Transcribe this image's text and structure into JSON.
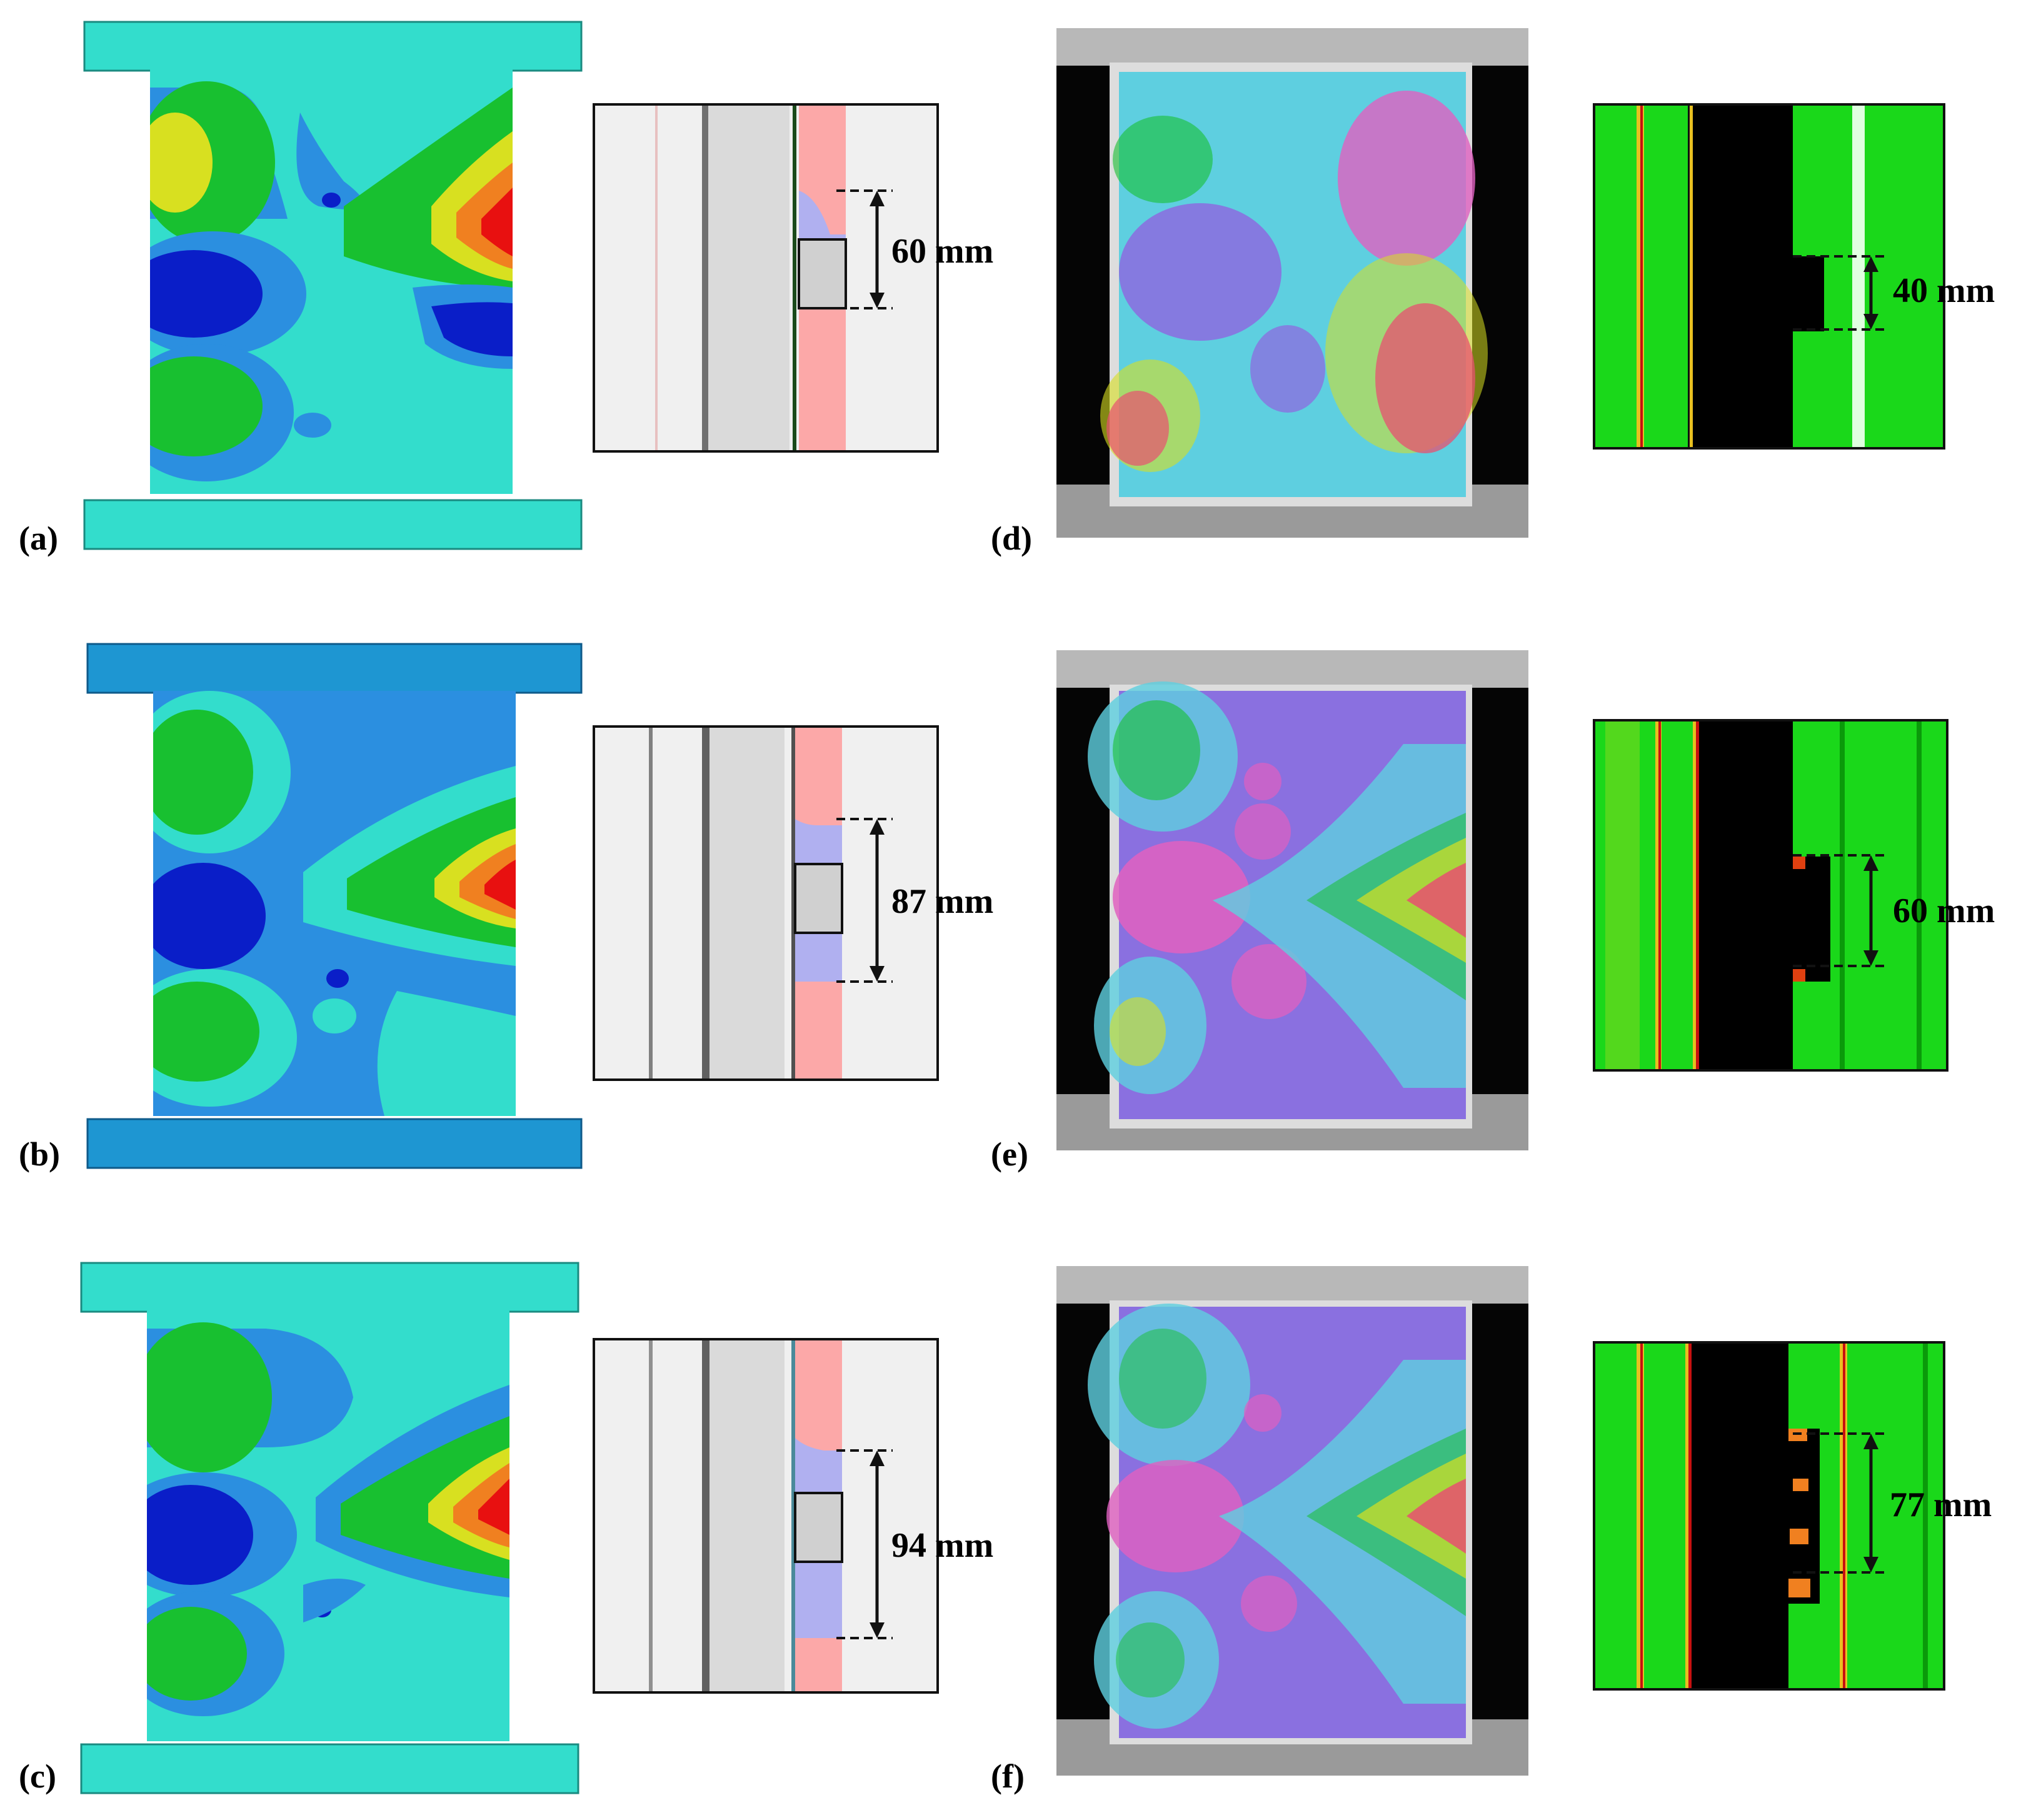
{
  "figure": {
    "panels": [
      {
        "id": "a",
        "label": "(a)",
        "measurement": "60 mm",
        "row": 0
      },
      {
        "id": "b",
        "label": "(b)",
        "measurement": "87 mm",
        "row": 1
      },
      {
        "id": "c",
        "label": "(c)",
        "measurement": "94 mm",
        "row": 2
      },
      {
        "id": "d",
        "label": "(d)",
        "measurement": "40 mm",
        "row": 0
      },
      {
        "id": "e",
        "label": "(e)",
        "measurement": "60 mm",
        "row": 1
      },
      {
        "id": "f",
        "label": "(f)",
        "measurement": "77 mm",
        "row": 2
      }
    ]
  },
  "colors": {
    "cyan_plate": "#33ddcc",
    "blue_plate": "#1e96d2",
    "contour_blue": "#2b8fe0",
    "contour_darkblue": "#0a1ec8",
    "contour_green": "#18c030",
    "contour_yellow": "#d8e020",
    "contour_orange": "#f08020",
    "contour_red": "#e81010",
    "dic_cyan": "#5ecfe0",
    "dic_purple": "#8a70e0",
    "dic_magenta": "#e060c0",
    "slice_green": "#1ad81a",
    "slice_black": "#000000",
    "pink_band": "#fca8a8"
  }
}
